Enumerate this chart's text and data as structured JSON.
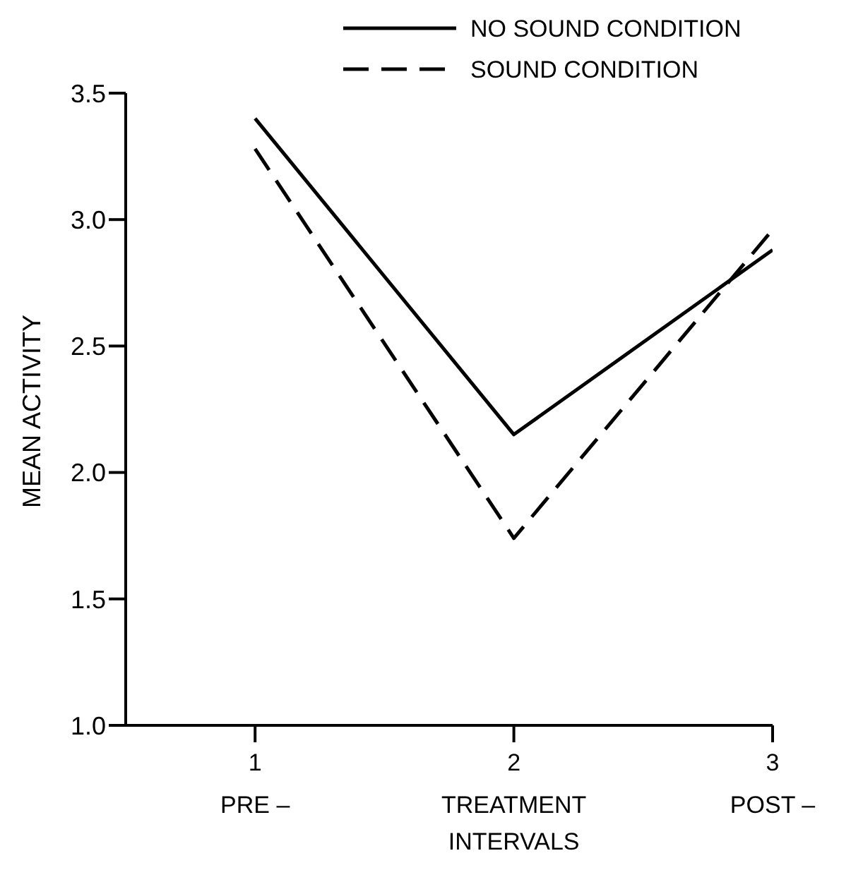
{
  "chart_data": {
    "type": "line",
    "ylabel": "MEAN ACTIVITY",
    "x": [
      1,
      2,
      3
    ],
    "xlim": [
      0.5,
      3
    ],
    "xticks": [
      {
        "value": 1,
        "label": "1\nPRE –"
      },
      {
        "value": 2,
        "label": "2\nTREATMENT\nINTERVALS"
      },
      {
        "value": 3,
        "label": "3\nPOST –"
      }
    ],
    "ylim": [
      1.0,
      3.5
    ],
    "yticks": [
      {
        "value": 1.0,
        "label": "1.0"
      },
      {
        "value": 1.5,
        "label": "1.5"
      },
      {
        "value": 2.0,
        "label": "2.0"
      },
      {
        "value": 2.5,
        "label": "2.5"
      },
      {
        "value": 3.0,
        "label": "3.0"
      },
      {
        "value": 3.5,
        "label": "3.5"
      }
    ],
    "series": [
      {
        "name": "NO SOUND CONDITION",
        "color": "#000000",
        "line_style": "solid",
        "values": [
          3.4,
          2.15,
          2.88
        ]
      },
      {
        "name": "SOUND CONDITION",
        "color": "#000000",
        "line_style": "dashed",
        "values": [
          3.28,
          1.74,
          2.96
        ]
      }
    ],
    "legend": "top right",
    "grid": false,
    "marker": "none"
  }
}
